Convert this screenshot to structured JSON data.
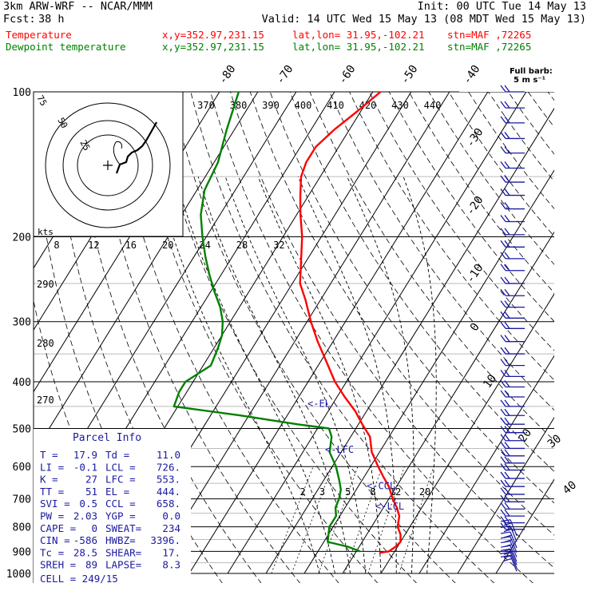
{
  "header": {
    "model": "3km ARW-WRF -- NCAR/MMM",
    "init": "Init: 00 UTC Tue 14 May 13",
    "fcst_label": "Fcst:",
    "fcst_value": "38 h",
    "valid": "Valid: 14 UTC Wed 15 May 13 (08 MDT Wed 15 May 13)",
    "temp_label": "Temperature",
    "dew_label": "Dewpoint temperature",
    "xy": "x,y=352.97,231.15",
    "latlon": "lat,lon= 31.95,-102.21",
    "stn": "stn=MAF ,72265"
  },
  "colors": {
    "temperature": "#ff0000",
    "dewpoint": "#008000",
    "wind": "#1a1aa0",
    "annotation": "#1a1aa0",
    "grid": "#000000"
  },
  "barb_legend": {
    "line1": "Full barb:",
    "line2": "5 m s⁻¹"
  },
  "hodograph": {
    "ring_labels": [
      "75",
      "50",
      "25"
    ],
    "units": "kts"
  },
  "parcel_info": {
    "title": "Parcel Info",
    "rows": [
      [
        "T  =",
        "17.9",
        "Td =",
        "11.0"
      ],
      [
        "LI =",
        "-0.1",
        "LCL =",
        "726."
      ],
      [
        "K  =",
        "27",
        "LFC =",
        "553."
      ],
      [
        "TT =",
        "51",
        "EL  =",
        "444."
      ],
      [
        "SVI =",
        "0.5",
        "CCL =",
        "658."
      ],
      [
        "PW =",
        "2.03",
        "YGP =",
        "0.0"
      ],
      [
        "CAPE =",
        "0",
        "SWEAT=",
        "234"
      ],
      [
        "CIN =",
        "-586",
        "HWBZ=",
        "3396."
      ],
      [
        "Tc =",
        "28.5",
        "SHEAR=",
        "17."
      ],
      [
        "SREH =",
        "89",
        "LAPSE=",
        "8.3"
      ]
    ],
    "cell": "CELL = 249/15"
  },
  "chart_data": {
    "type": "line",
    "skew_t": true,
    "y_scale": "log-pressure (inverted)",
    "ylim": [
      1000,
      100
    ],
    "pressure_levels": [
      "100",
      "200",
      "300",
      "400",
      "500",
      "600",
      "700",
      "800",
      "900",
      "1000"
    ],
    "isotherm_labels": [
      "-80",
      "-70",
      "-60",
      "-50",
      "-40",
      "-30",
      "-20",
      "-10",
      "0",
      "10",
      "20",
      "30",
      "40"
    ],
    "mixing_ratio_labels": [
      "2",
      "3",
      "5",
      "8",
      "12",
      "20"
    ],
    "theta_e_labels": [
      "370",
      "380",
      "390",
      "400",
      "410",
      "420",
      "430",
      "440"
    ],
    "theta_labels": [
      "290",
      "280",
      "270"
    ],
    "hodo_speed_labels": [
      "8",
      "12",
      "16",
      "20",
      "24",
      "28",
      "32"
    ],
    "annotations": [
      {
        "label": "<-EL",
        "p": 444
      },
      {
        "label": "<-LFC",
        "p": 553
      },
      {
        "label": "<-CCL",
        "p": 658
      },
      {
        "label": "<-LCL",
        "p": 726
      }
    ],
    "series": [
      {
        "name": "Temperature",
        "points": [
          [
            910,
            16.5
          ],
          [
            905,
            16.5
          ],
          [
            900,
            18.5
          ],
          [
            880,
            19.5
          ],
          [
            860,
            20
          ],
          [
            830,
            18.8
          ],
          [
            800,
            16.8
          ],
          [
            760,
            15.5
          ],
          [
            730,
            13.5
          ],
          [
            700,
            11
          ],
          [
            660,
            8
          ],
          [
            630,
            5
          ],
          [
            600,
            2
          ],
          [
            560,
            -2
          ],
          [
            520,
            -5
          ],
          [
            490,
            -9
          ],
          [
            460,
            -13
          ],
          [
            430,
            -18
          ],
          [
            400,
            -23
          ],
          [
            360,
            -29
          ],
          [
            330,
            -34
          ],
          [
            300,
            -39
          ],
          [
            270,
            -44
          ],
          [
            250,
            -48
          ],
          [
            220,
            -52
          ],
          [
            200,
            -55
          ],
          [
            180,
            -59
          ],
          [
            165,
            -62
          ],
          [
            150,
            -65
          ],
          [
            140,
            -66
          ],
          [
            130,
            -66
          ],
          [
            120,
            -64
          ],
          [
            110,
            -61
          ],
          [
            100,
            -58
          ]
        ]
      },
      {
        "name": "Dewpoint temperature",
        "points": [
          [
            900,
            11
          ],
          [
            880,
            7
          ],
          [
            860,
            1
          ],
          [
            830,
            0
          ],
          [
            800,
            -1
          ],
          [
            760,
            -1
          ],
          [
            730,
            -2.5
          ],
          [
            700,
            -3
          ],
          [
            670,
            -4
          ],
          [
            640,
            -6
          ],
          [
            600,
            -9
          ],
          [
            560,
            -13
          ],
          [
            520,
            -15
          ],
          [
            500,
            -17
          ],
          [
            490,
            -26
          ],
          [
            470,
            -42
          ],
          [
            450,
            -61
          ],
          [
            420,
            -62
          ],
          [
            400,
            -62
          ],
          [
            370,
            -58
          ],
          [
            340,
            -59
          ],
          [
            320,
            -60
          ],
          [
            300,
            -62
          ],
          [
            280,
            -65
          ],
          [
            260,
            -69
          ],
          [
            240,
            -73
          ],
          [
            220,
            -77
          ],
          [
            200,
            -81
          ],
          [
            180,
            -85
          ],
          [
            160,
            -88
          ],
          [
            140,
            -89
          ],
          [
            120,
            -92
          ],
          [
            100,
            -95
          ]
        ]
      }
    ],
    "wind_barbs_pressure": [
      990,
      975,
      960,
      945,
      925,
      905,
      885,
      860,
      835,
      810,
      785,
      760,
      735,
      710,
      685,
      660,
      635,
      610,
      590,
      570,
      550,
      530,
      510,
      490,
      470,
      450,
      430,
      410,
      390,
      370,
      350,
      330,
      310,
      295,
      280,
      265,
      250,
      235,
      222,
      210,
      198,
      186,
      175,
      164,
      154,
      144,
      134,
      125,
      116,
      108,
      100
    ]
  }
}
